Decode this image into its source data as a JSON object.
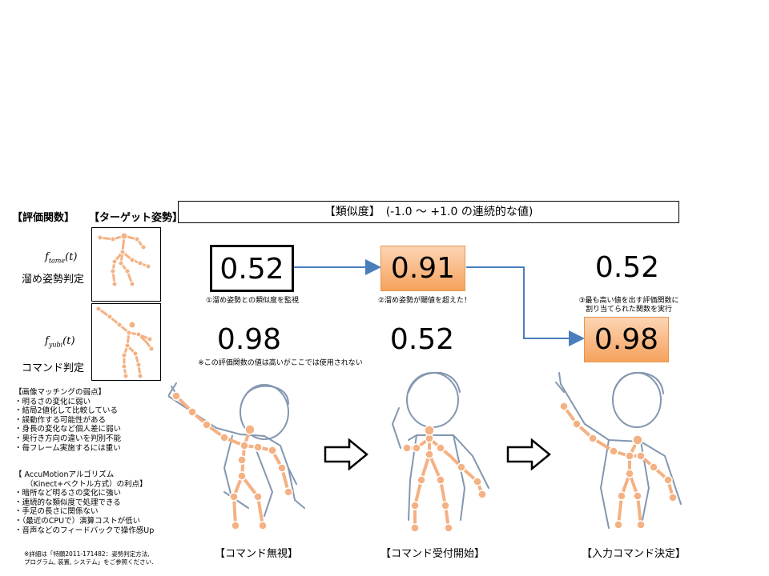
{
  "headers": {
    "eval_func": "【評価関数】",
    "target_pose": "【ターゲット姿勢】"
  },
  "banner": "【類似度】　(-1.0 〜 +1.0 の連続的な値)",
  "functions": [
    {
      "name_main": "f",
      "name_sub": "tame",
      "arg": "(t)",
      "label": "溜め姿勢判定"
    },
    {
      "name_main": "f",
      "name_sub": "yubi",
      "arg": "(t)",
      "label": "コマンド判定"
    }
  ],
  "values": {
    "row1": [
      "0.52",
      "0.91",
      "0.52"
    ],
    "row2": [
      "0.98",
      "0.52",
      "0.98"
    ]
  },
  "captions": {
    "c1": "①溜め姿勢との類似度を監視",
    "c2": "②溜め姿勢が閾値を超えた！",
    "c3_line1": "③最も高い値を出す評価関数に",
    "c3_line2": "割り当てられた関数を実行",
    "note": "※この評価関数の値は高いがここでは使用されない"
  },
  "weakness": {
    "title": "【画像マッチングの弱点】",
    "items": [
      "・明るさの変化に弱い",
      "・結局2値化して比較している",
      "・誤動作する可能性がある",
      "・身長の変化など個人差に弱い",
      "・奥行き方向の違いを判別不能",
      "・毎フレーム実施するには重い"
    ]
  },
  "advantage": {
    "title1": "【 AccuMotionアルゴリズム",
    "title2": "（Kinect+ベクトル方式）の利点】",
    "items": [
      "・暗所など明るさの変化に強い",
      "・連続的な類似度で処理できる",
      "・手足の長さに関係ない",
      "・（最近のCPUで）演算コストが低い",
      "・音声などのフィードバックで操作感Up"
    ]
  },
  "footnote": {
    "line1": "※詳細は「特願2011-171482：姿勢判定方法,",
    "line2": "プログラム, 装置, システム」をご参照ください."
  },
  "scenes": [
    "【コマンド無視】",
    "【コマンド受付開始】",
    "【入力コマンド決定】"
  ],
  "colors": {
    "orange": "#f4b183",
    "joint": "#f4b183",
    "sketch": "#8497b0",
    "arrow": "#4a7ebb"
  }
}
